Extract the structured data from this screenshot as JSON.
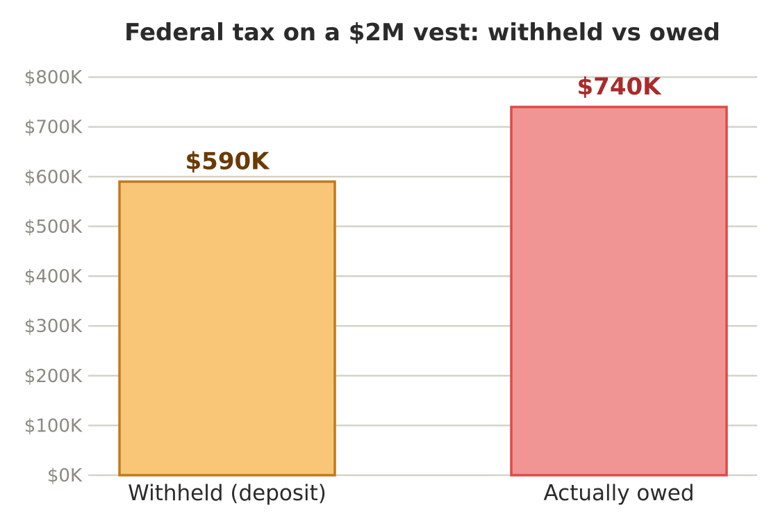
{
  "chart_data": {
    "type": "bar",
    "title": "Federal tax on a $2M vest: withheld vs owed",
    "xlabel": "",
    "ylabel": "",
    "categories": [
      "Withheld (deposit)",
      "Actually owed"
    ],
    "values": [
      590000,
      740000
    ],
    "value_labels": [
      "$590K",
      "$740K"
    ],
    "ylim": [
      0,
      800000
    ],
    "yticks": [
      0,
      100000,
      200000,
      300000,
      400000,
      500000,
      600000,
      700000,
      800000
    ],
    "ytick_labels": [
      "$0K",
      "$100K",
      "$200K",
      "$300K",
      "$400K",
      "$500K",
      "$600K",
      "$700K",
      "$800K"
    ],
    "grid": true,
    "legend": "none",
    "bar_colors": [
      {
        "fill": "#f9c677",
        "edge": "#bf7a1d",
        "label": "#6b3a05"
      },
      {
        "fill": "#f09594",
        "edge": "#dd4b47",
        "label": "#a82c2c"
      }
    ]
  }
}
